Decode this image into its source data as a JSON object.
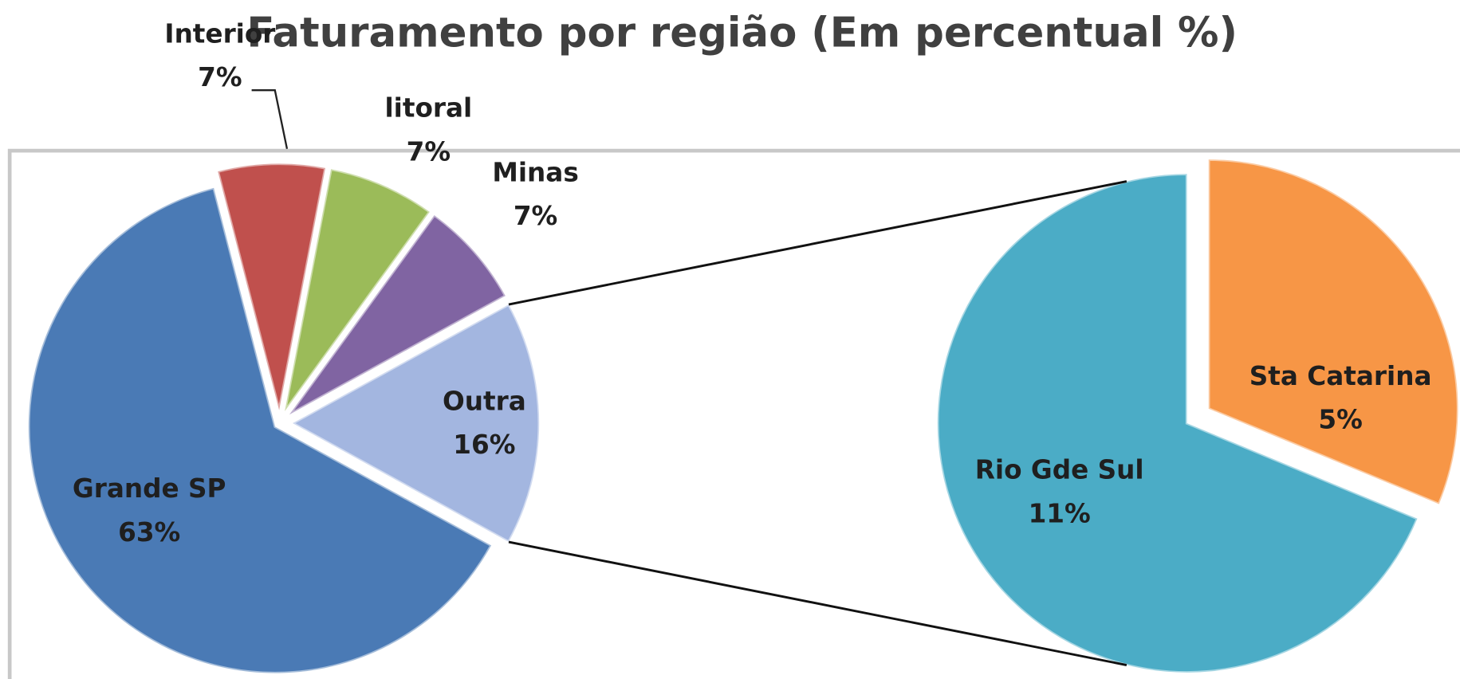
{
  "chart_data": {
    "type": "pie",
    "title": "Faturamento por região (Em percentual %)",
    "categories": [
      "Grande SP",
      "Interior",
      "litoral",
      "Minas",
      "Outra"
    ],
    "values": [
      63,
      7,
      7,
      7,
      16
    ],
    "value_labels": [
      "63%",
      "7%",
      "7%",
      "7%",
      "16%"
    ],
    "colors": [
      "#4a7ab5",
      "#c0504d",
      "#9bbb59",
      "#8064a2",
      "#a3b6e0"
    ],
    "secondary": {
      "categories": [
        "Rio Gde Sul",
        "Sta Catarina"
      ],
      "values": [
        11,
        5
      ],
      "value_labels": [
        "11%",
        "5%"
      ],
      "colors": [
        "#4bacc6",
        "#f79646"
      ]
    }
  }
}
